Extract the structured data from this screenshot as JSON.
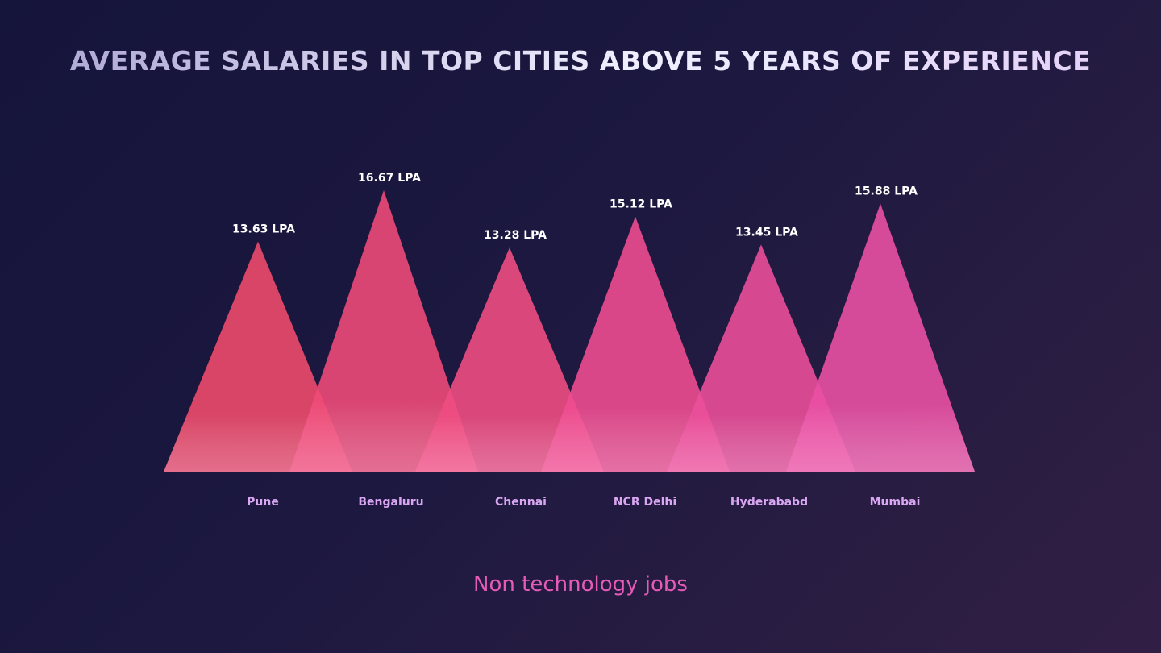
{
  "chart_data": {
    "type": "bar",
    "title": "AVERAGE SALARIES IN TOP CITIES ABOVE 5 YEARS OF EXPERIENCE",
    "subtitle": "Non technology jobs",
    "categories": [
      "Pune",
      "Bengaluru",
      "Chennai",
      "NCR Delhi",
      "Hyderababd",
      "Mumbai"
    ],
    "values": [
      13.63,
      16.67,
      13.28,
      15.12,
      13.45,
      15.88
    ],
    "value_labels": [
      "13.63 LPA",
      "16.67 LPA",
      "13.28 LPA",
      "15.12 LPA",
      "13.45 LPA",
      "15.88 LPA"
    ],
    "xlabel": "",
    "ylabel": "",
    "grid": false,
    "legend": "none",
    "colors": [
      "#ee4a6a",
      "#ee4a78",
      "#ee4c82",
      "#ee4c90",
      "#ea4f9a",
      "#ea50a4"
    ]
  }
}
